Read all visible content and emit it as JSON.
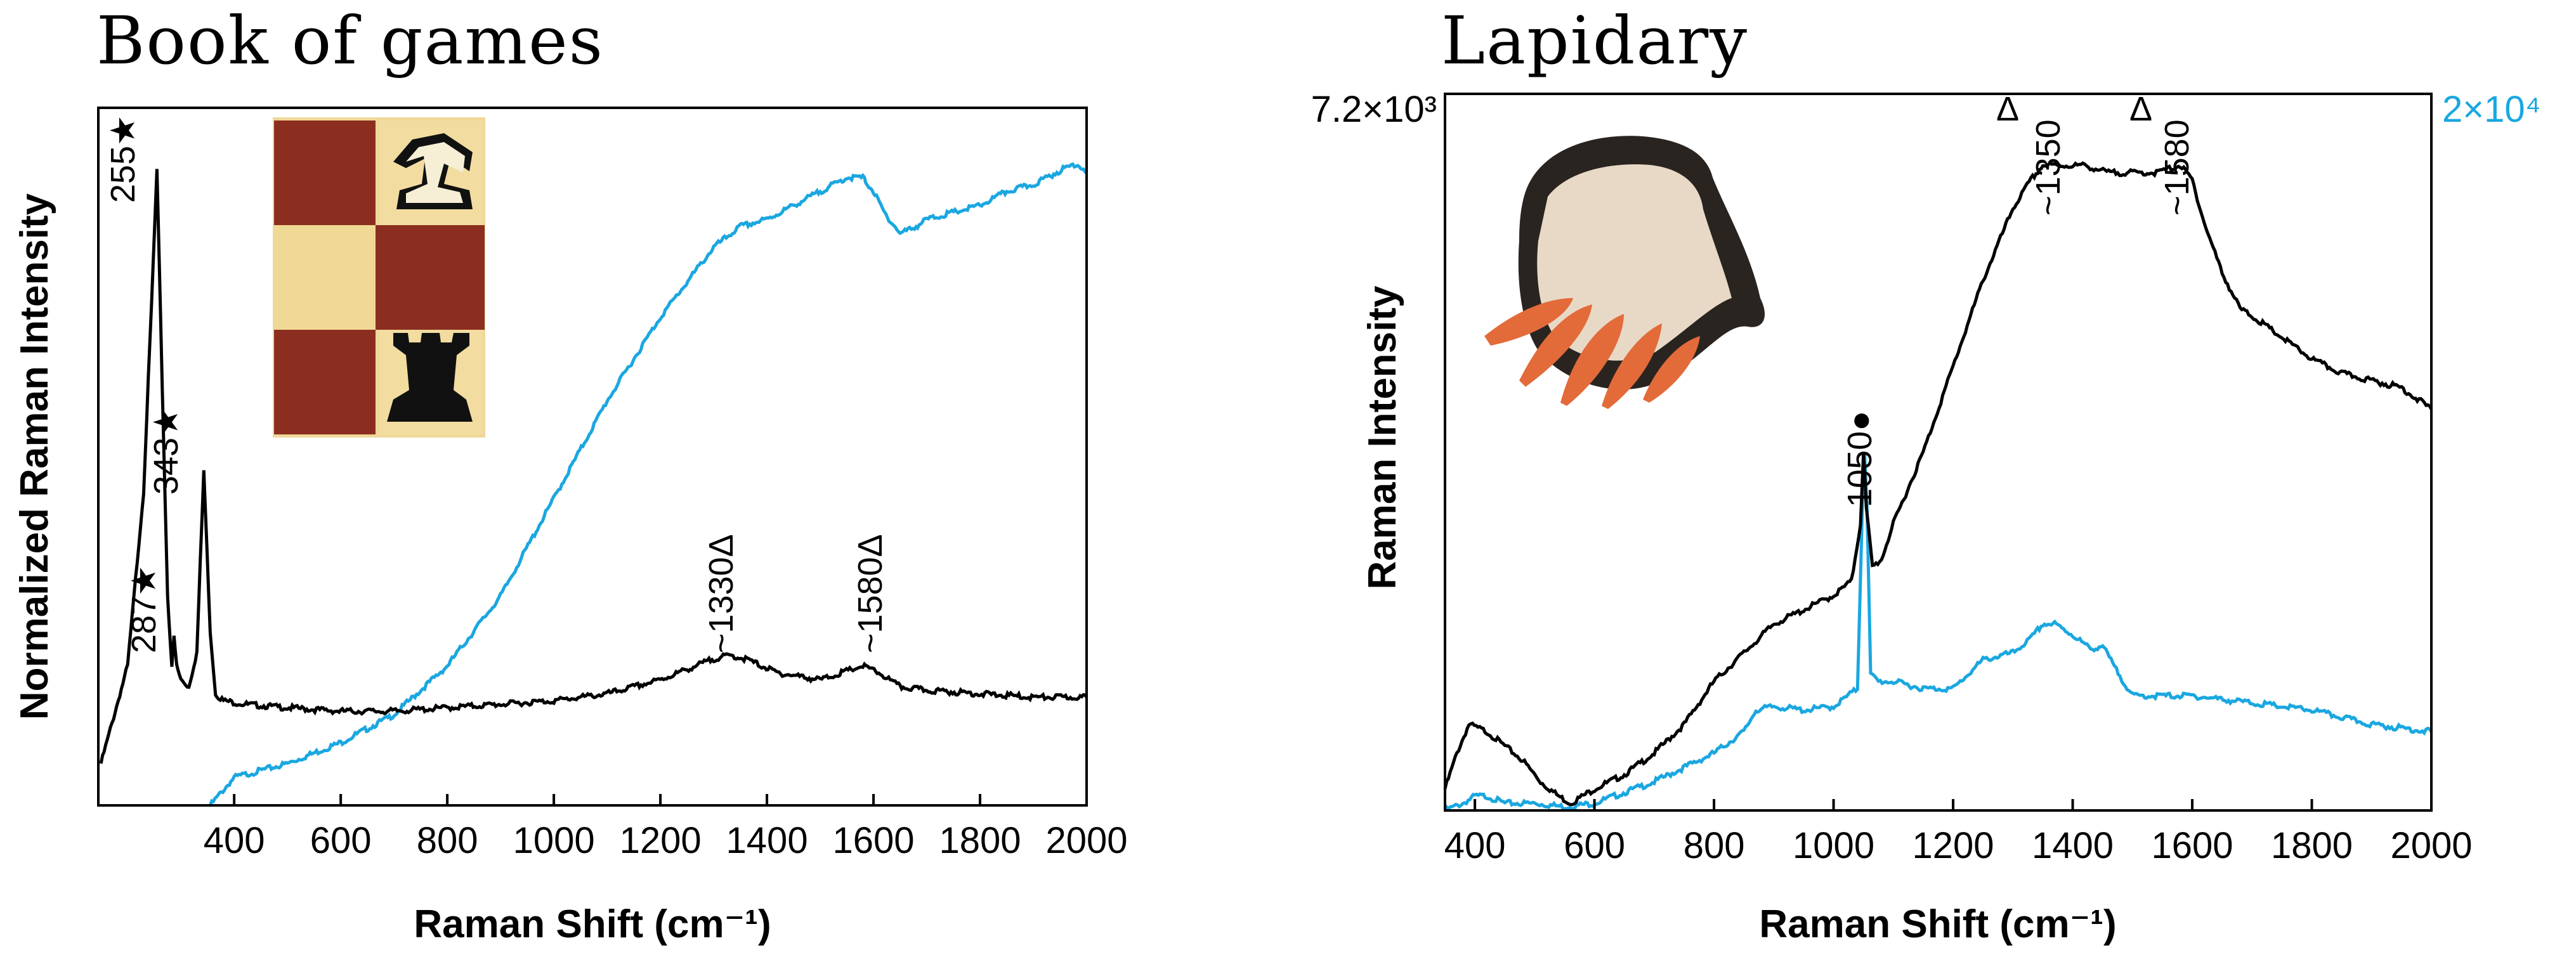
{
  "chart_data": [
    {
      "type": "line",
      "title": "Book of games",
      "xlabel": "Raman Shift (cm⁻¹)",
      "ylabel": "Normalized Raman Intensity",
      "xlim": [
        145,
        2000
      ],
      "ylim": [
        0,
        1
      ],
      "x_ticks": [
        400,
        600,
        800,
        1000,
        1200,
        1400,
        1600,
        1800,
        2000
      ],
      "x_tick_labels": [
        "400",
        "600",
        "800",
        "1000",
        "1200",
        "1400",
        "1600",
        "1800",
        "2000"
      ],
      "annotations": [
        {
          "label": "255★",
          "x": 255
        },
        {
          "label": "287★",
          "x": 287
        },
        {
          "label": "343★",
          "x": 343
        },
        {
          "label": "~1330Δ",
          "x": 1330
        },
        {
          "label": "~1580Δ",
          "x": 1580
        }
      ],
      "series": [
        {
          "name": "black",
          "color": "#000000",
          "x": [
            150,
            200,
            230,
            245,
            255,
            265,
            275,
            283,
            287,
            292,
            300,
            315,
            330,
            343,
            355,
            365,
            380,
            420,
            500,
            600,
            700,
            800,
            900,
            1000,
            1100,
            1200,
            1250,
            1300,
            1330,
            1360,
            1420,
            1500,
            1540,
            1580,
            1610,
            1650,
            1700,
            1800,
            1900,
            2000
          ],
          "y": [
            0.06,
            0.2,
            0.45,
            0.72,
            0.91,
            0.6,
            0.3,
            0.2,
            0.24,
            0.2,
            0.18,
            0.17,
            0.22,
            0.48,
            0.25,
            0.16,
            0.15,
            0.145,
            0.14,
            0.135,
            0.135,
            0.14,
            0.145,
            0.15,
            0.16,
            0.18,
            0.195,
            0.21,
            0.215,
            0.21,
            0.19,
            0.18,
            0.19,
            0.2,
            0.19,
            0.17,
            0.165,
            0.16,
            0.155,
            0.155
          ]
        },
        {
          "name": "blue",
          "color": "#1aa7e0",
          "x": [
            355,
            400,
            500,
            600,
            700,
            800,
            900,
            1000,
            1100,
            1200,
            1300,
            1350,
            1400,
            1450,
            1500,
            1550,
            1580,
            1600,
            1620,
            1650,
            1680,
            1700,
            1750,
            1800,
            1850,
            1900,
            1950,
            1980,
            2000
          ],
          "y": [
            0.0,
            0.04,
            0.06,
            0.09,
            0.13,
            0.2,
            0.3,
            0.44,
            0.58,
            0.7,
            0.8,
            0.83,
            0.84,
            0.86,
            0.88,
            0.9,
            0.9,
            0.88,
            0.85,
            0.82,
            0.83,
            0.84,
            0.85,
            0.86,
            0.88,
            0.89,
            0.91,
            0.92,
            0.91
          ]
        }
      ]
    },
    {
      "type": "line",
      "title": "Lapidary",
      "xlabel": "Raman Shift (cm⁻¹)",
      "ylabel": "Raman Intensity",
      "xlim": [
        350,
        2000
      ],
      "ylim": [
        0,
        1
      ],
      "left_axis_max_label": "7.2×10³",
      "right_axis_max_label": "2×10⁴",
      "x_ticks": [
        400,
        600,
        800,
        1000,
        1200,
        1400,
        1600,
        1800,
        2000
      ],
      "x_tick_labels": [
        "400",
        "600",
        "800",
        "1000",
        "1200",
        "1400",
        "1600",
        "1800",
        "2000"
      ],
      "annotations": [
        {
          "label": "1050●",
          "x": 1050
        },
        {
          "label": "Δ",
          "x": 1300
        },
        {
          "label": "~1350",
          "x": 1350
        },
        {
          "label": "Δ",
          "x": 1525
        },
        {
          "label": "~1580",
          "x": 1580
        }
      ],
      "series": [
        {
          "name": "black",
          "color": "#000000",
          "x": [
            350,
            370,
            390,
            420,
            450,
            480,
            510,
            540,
            560,
            600,
            650,
            700,
            750,
            800,
            850,
            900,
            950,
            1000,
            1030,
            1045,
            1050,
            1055,
            1065,
            1080,
            1100,
            1150,
            1200,
            1250,
            1300,
            1330,
            1350,
            1380,
            1420,
            1460,
            1500,
            1540,
            1580,
            1600,
            1620,
            1650,
            1680,
            1700,
            1750,
            1800,
            1850,
            1900,
            1950,
            2000
          ],
          "y": [
            0.03,
            0.08,
            0.12,
            0.11,
            0.09,
            0.07,
            0.04,
            0.02,
            0.01,
            0.03,
            0.05,
            0.08,
            0.12,
            0.18,
            0.22,
            0.26,
            0.28,
            0.3,
            0.32,
            0.4,
            0.5,
            0.42,
            0.34,
            0.35,
            0.4,
            0.5,
            0.62,
            0.74,
            0.84,
            0.88,
            0.9,
            0.9,
            0.9,
            0.89,
            0.89,
            0.89,
            0.9,
            0.88,
            0.82,
            0.75,
            0.7,
            0.69,
            0.66,
            0.63,
            0.61,
            0.6,
            0.59,
            0.56
          ]
        },
        {
          "name": "blue",
          "color": "#1aa7e0",
          "x": [
            350,
            380,
            400,
            420,
            450,
            500,
            550,
            600,
            700,
            800,
            850,
            870,
            900,
            950,
            1000,
            1040,
            1048,
            1052,
            1056,
            1062,
            1075,
            1100,
            1150,
            1200,
            1250,
            1300,
            1330,
            1350,
            1370,
            1400,
            1430,
            1450,
            1470,
            1500,
            1550,
            1600,
            1700,
            1800,
            1900,
            2000
          ],
          "y": [
            0.0,
            0.01,
            0.02,
            0.02,
            0.01,
            0.01,
            0.005,
            0.01,
            0.04,
            0.08,
            0.11,
            0.14,
            0.145,
            0.14,
            0.145,
            0.17,
            0.42,
            0.5,
            0.42,
            0.19,
            0.18,
            0.18,
            0.17,
            0.17,
            0.21,
            0.22,
            0.24,
            0.26,
            0.26,
            0.245,
            0.225,
            0.23,
            0.2,
            0.16,
            0.16,
            0.16,
            0.15,
            0.14,
            0.12,
            0.11
          ]
        }
      ]
    }
  ]
}
